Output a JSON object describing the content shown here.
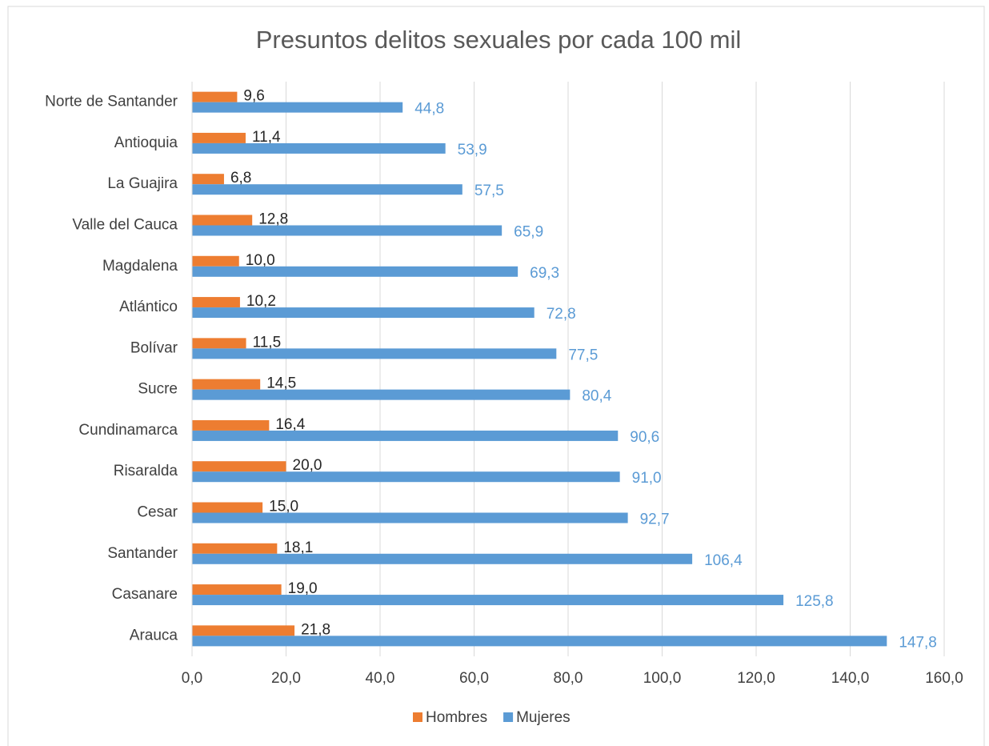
{
  "chart_data": {
    "type": "hbar",
    "title": "Presuntos delitos sexuales por cada 100 mil",
    "categories": [
      "Norte de Santander",
      "Antioquia",
      "La Guajira",
      "Valle del Cauca",
      "Magdalena",
      "Atlántico",
      "Bolívar",
      "Sucre",
      "Cundinamarca",
      "Risaralda",
      "Cesar",
      "Santander",
      "Casanare",
      "Arauca"
    ],
    "series": [
      {
        "name": "Hombres",
        "color": "#ed7d31",
        "label_color": "#262626",
        "values": [
          9.6,
          11.4,
          6.8,
          12.8,
          10.0,
          10.2,
          11.5,
          14.5,
          16.4,
          20.0,
          15.0,
          18.1,
          19.0,
          21.8
        ],
        "value_labels": [
          "9,6",
          "11,4",
          "6,8",
          "12,8",
          "10,0",
          "10,2",
          "11,5",
          "14,5",
          "16,4",
          "20,0",
          "15,0",
          "18,1",
          "19,0",
          "21,8"
        ]
      },
      {
        "name": "Mujeres",
        "color": "#5b9bd5",
        "label_color": "#5b9bd5",
        "values": [
          44.8,
          53.9,
          57.5,
          65.9,
          69.3,
          72.8,
          77.5,
          80.4,
          90.6,
          91.0,
          92.7,
          106.4,
          125.8,
          147.8
        ],
        "value_labels": [
          "44,8",
          "53,9",
          "57,5",
          "65,9",
          "69,3",
          "72,8",
          "77,5",
          "80,4",
          "90,6",
          "91,0",
          "92,7",
          "106,4",
          "125,8",
          "147,8"
        ]
      }
    ],
    "xlim": [
      0,
      160
    ],
    "xticks": [
      {
        "value": 0,
        "label": "0,0"
      },
      {
        "value": 20,
        "label": "20,0"
      },
      {
        "value": 40,
        "label": "40,0"
      },
      {
        "value": 60,
        "label": "60,0"
      },
      {
        "value": 80,
        "label": "80,0"
      },
      {
        "value": 100,
        "label": "100,0"
      },
      {
        "value": 120,
        "label": "120,0"
      },
      {
        "value": 140,
        "label": "140,0"
      },
      {
        "value": 160,
        "label": "160,0"
      }
    ],
    "grid": true,
    "legend": "bottom"
  }
}
